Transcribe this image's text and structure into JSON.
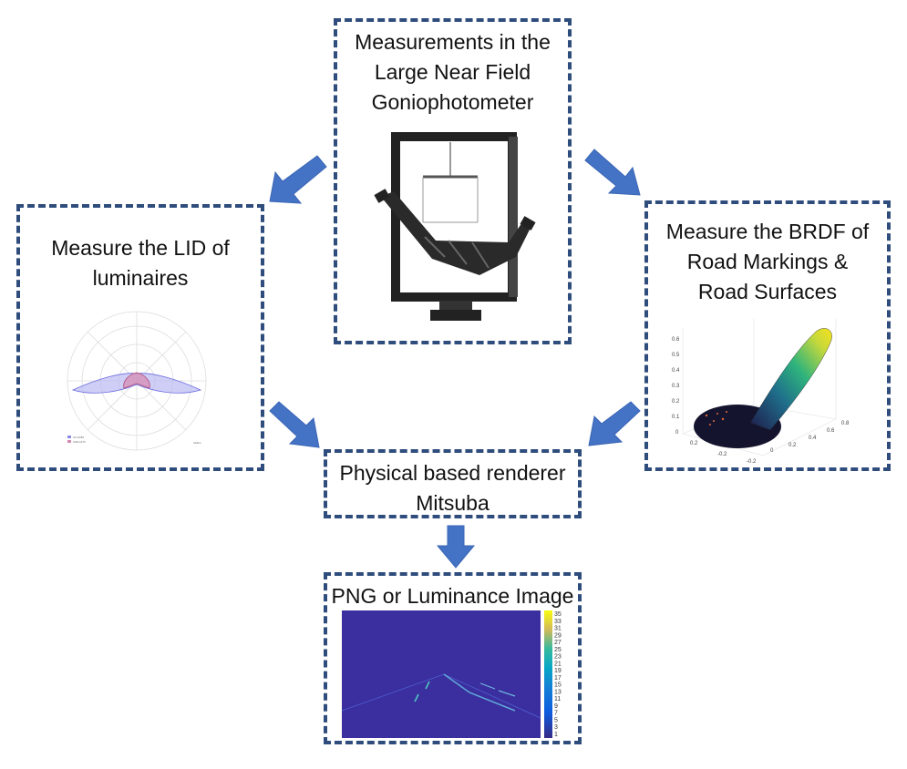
{
  "goniophotometer": {
    "lines": [
      "Measurements in the",
      "Large Near Field",
      "Goniophotometer"
    ]
  },
  "lid": {
    "lines": [
      "Measure the LID of",
      "luminaires"
    ],
    "legend": [
      "C0-C180",
      "C90-C270"
    ],
    "unit": "cd/klm"
  },
  "brdf": {
    "lines": [
      "Measure the BRDF of",
      "Road Markings &",
      "Road Surfaces"
    ],
    "z_ticks": [
      "0.6",
      "0.5",
      "0.4",
      "0.3",
      "0.2",
      "0.1",
      "0"
    ],
    "x_ticks": [
      "-0.2",
      "0",
      "0.2",
      "0.4",
      "0.6",
      "0.8"
    ],
    "y_ticks": [
      "-0.2",
      "0",
      "0.2"
    ]
  },
  "renderer": {
    "lines": [
      "Physical based renderer",
      "Mitsuba"
    ]
  },
  "output": {
    "title": "PNG or Luminance Image",
    "colorbar_ticks": [
      "35",
      "33",
      "31",
      "29",
      "27",
      "25",
      "23",
      "21",
      "19",
      "17",
      "15",
      "13",
      "11",
      "9",
      "7",
      "5",
      "3",
      "1"
    ]
  },
  "colors": {
    "border": "#2f4d7c",
    "arrow": "#4472c4",
    "image_bg": "#3b2e9e"
  }
}
